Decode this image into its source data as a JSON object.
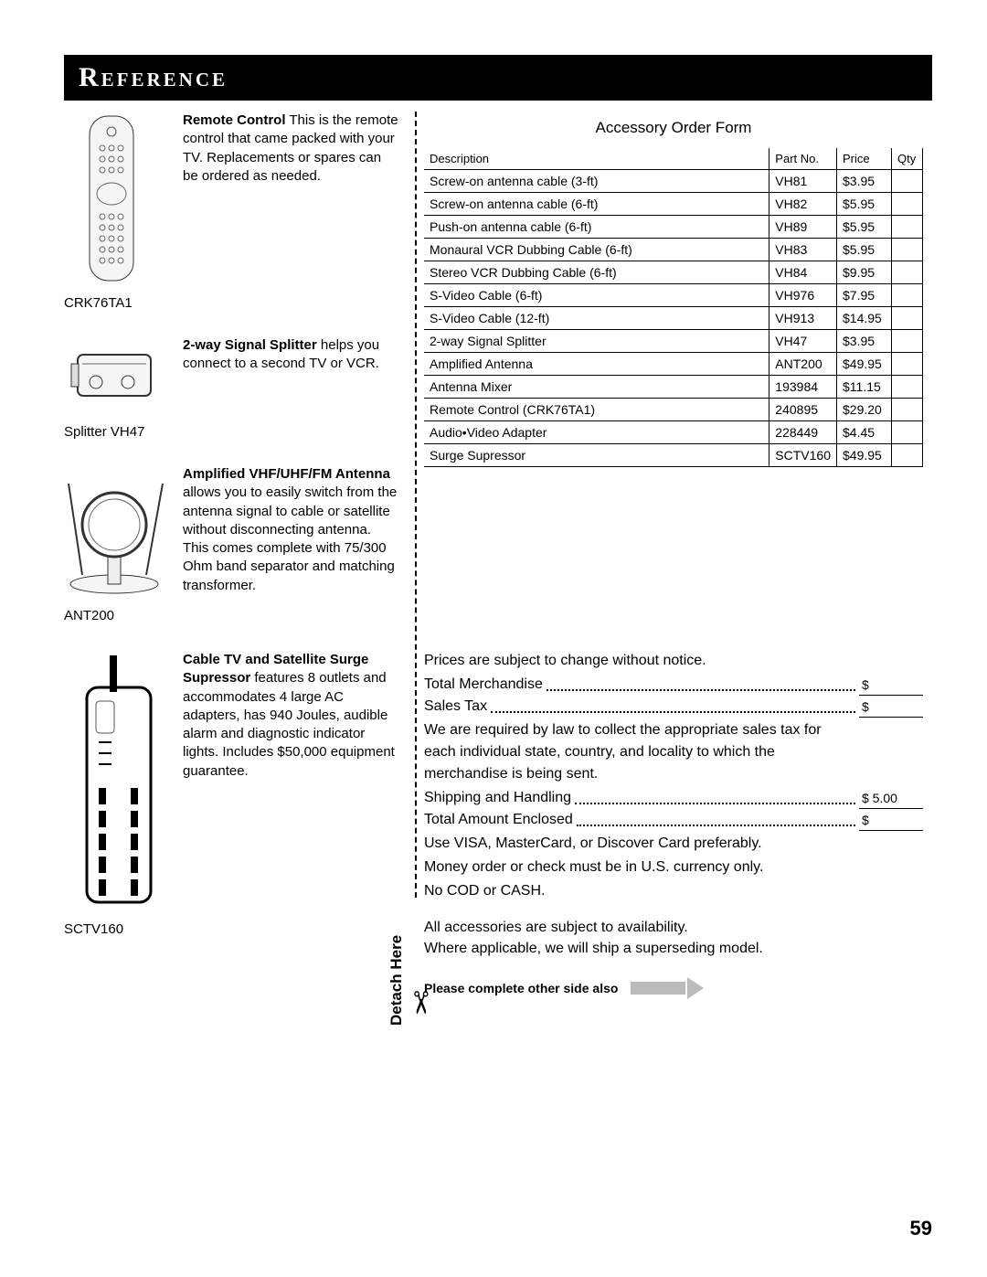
{
  "header": "Reference",
  "page_number": "59",
  "detach_label": "Detach Here",
  "complete_note": "Please complete other side also",
  "products": [
    {
      "caption": "CRK76TA1",
      "bold": "Remote Control",
      "text": " This is the remote control that came packed with your TV. Replacements or spares can be ordered as needed."
    },
    {
      "caption": "Splitter VH47",
      "bold": "2-way Signal Splitter",
      "text": "  helps you connect to a second TV or VCR."
    },
    {
      "caption": "ANT200",
      "bold": "Amplified VHF/UHF/FM Antenna",
      "text": " allows you to easily switch from the antenna signal to cable or satellite without disconnecting antenna.  This comes complete with 75/300 Ohm band separator and matching transformer."
    },
    {
      "caption": "SCTV160",
      "bold": "Cable TV and Satellite Surge Supressor",
      "text": " features 8 outlets and accommodates 4 large AC adapters, has 940 Joules, audible alarm and diagnostic indicator lights. Includes $50,000 equipment guarantee."
    }
  ],
  "order_form": {
    "title": "Accessory Order Form",
    "headers": {
      "desc": "Description",
      "part": "Part No.",
      "price": "Price",
      "qty": "Qty"
    },
    "rows": [
      {
        "desc": "Screw-on antenna cable (3-ft)",
        "part": "VH81",
        "price": "$3.95"
      },
      {
        "desc": "Screw-on antenna cable (6-ft)",
        "part": "VH82",
        "price": "$5.95"
      },
      {
        "desc": "Push-on antenna cable (6-ft)",
        "part": "VH89",
        "price": "$5.95"
      },
      {
        "desc": "Monaural VCR Dubbing Cable (6-ft)",
        "part": "VH83",
        "price": "$5.95"
      },
      {
        "desc": "Stereo VCR Dubbing Cable (6-ft)",
        "part": "VH84",
        "price": "$9.95"
      },
      {
        "desc": "S-Video Cable (6-ft)",
        "part": "VH976",
        "price": "$7.95"
      },
      {
        "desc": "S-Video Cable (12-ft)",
        "part": "VH913",
        "price": "$14.95"
      },
      {
        "desc": "2-way Signal Splitter",
        "part": "VH47",
        "price": "$3.95"
      },
      {
        "desc": "Amplified Antenna",
        "part": "ANT200",
        "price": "$49.95"
      },
      {
        "desc": "Antenna Mixer",
        "part": "193984",
        "price": "$11.15"
      },
      {
        "desc": "Remote Control (CRK76TA1)",
        "part": "240895",
        "price": "$29.20"
      },
      {
        "desc": "Audio•Video Adapter",
        "part": "228449",
        "price": "$4.45"
      },
      {
        "desc": "Surge Supressor",
        "part": "SCTV160",
        "price": "$49.95"
      }
    ]
  },
  "totals": {
    "notice": "Prices are subject to change without notice.",
    "merchandise": "Total Merchandise",
    "sales_tax": "Sales Tax",
    "tax_note": "We are required by law to collect the appropriate sales tax for each individual state, country, and locality to which the merchandise is being sent.",
    "shipping": "Shipping and Handling",
    "shipping_amt": "$    5.00",
    "total_enclosed": "Total Amount Enclosed",
    "card_note": "Use VISA, MasterCard, or Discover Card preferably.",
    "money_note": "Money order or check must be in U.S. currency only.",
    "cod_note": "No COD or CASH.",
    "avail_note1": "All accessories are subject to availability.",
    "avail_note2": "Where applicable, we will ship a superseding model.",
    "dollar": "$"
  }
}
